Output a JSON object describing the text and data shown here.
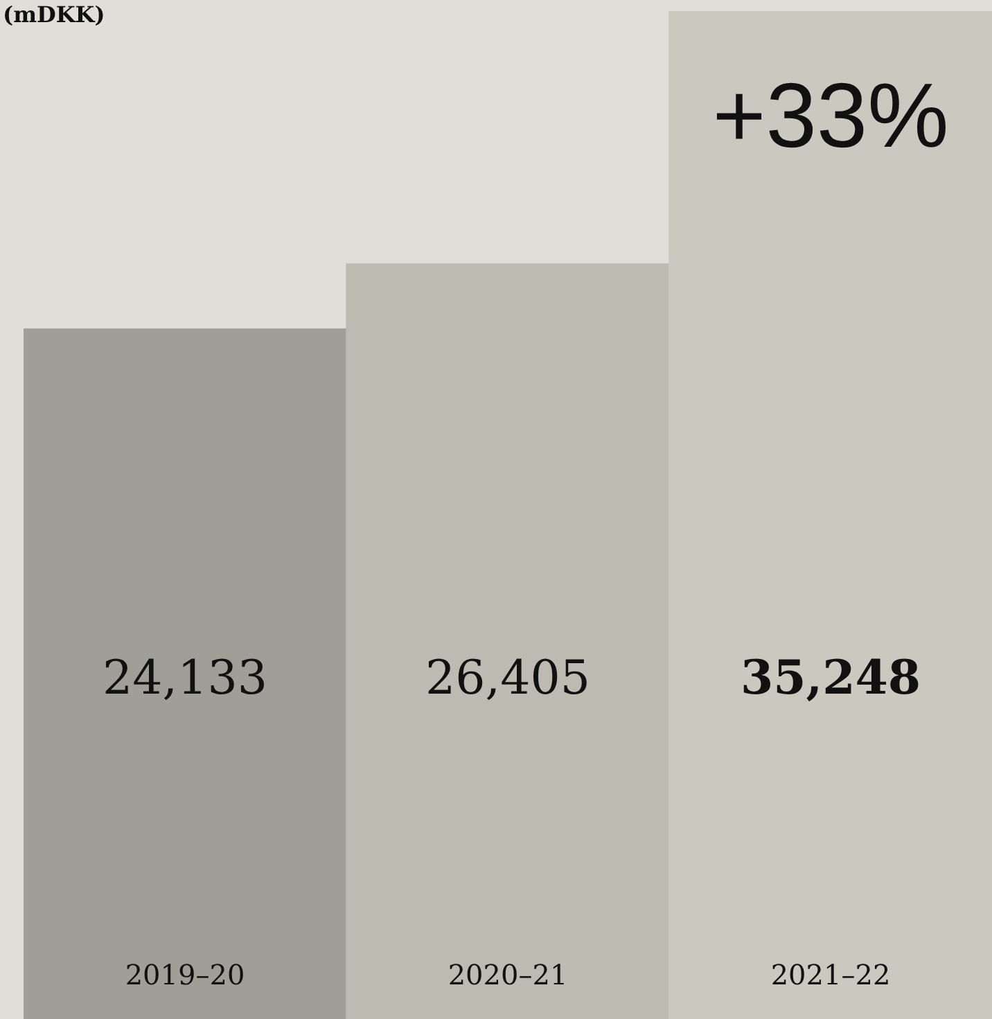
{
  "chart_data": {
    "type": "bar",
    "title": "(mDKK)",
    "categories": [
      "2019–20",
      "2020–21",
      "2021–22"
    ],
    "values": [
      24133,
      26405,
      35248
    ],
    "colors": [
      "#a09f97",
      "#bdbab2",
      "#cbc8c0"
    ],
    "value_labels": [
      "24,133",
      "26,405",
      "35,248"
    ],
    "annotations": [
      "+33%"
    ],
    "legend": false
  }
}
